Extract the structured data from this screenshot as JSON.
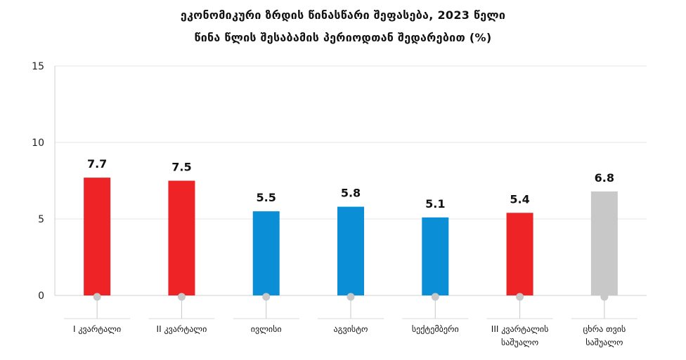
{
  "chart_data": {
    "type": "bar",
    "title": "ეკონომიკური ზრდის წინასწარი შეფასება, 2023 წელი",
    "subtitle": "წინა წლის შესაბამის პერიოდთან შედარებით (%)",
    "xlabel": "",
    "ylabel": "",
    "ylim": [
      0,
      15
    ],
    "yticks": [
      0,
      5,
      10,
      15
    ],
    "grid": true,
    "categories": [
      [
        "I კვარტალი"
      ],
      [
        "II კვარტალი"
      ],
      [
        "ივლისი"
      ],
      [
        "აგვისტო"
      ],
      [
        "სექტემბერი"
      ],
      [
        "III კვარტალის",
        "საშუალო"
      ],
      [
        "ცხრა თვის",
        "საშუალო"
      ]
    ],
    "values": [
      7.7,
      7.5,
      5.5,
      5.8,
      5.1,
      5.4,
      6.8
    ],
    "value_labels": [
      "7.7",
      "7.5",
      "5.5",
      "5.8",
      "5.1",
      "5.4",
      "6.8"
    ],
    "bar_colors": [
      "#ee2326",
      "#ee2326",
      "#0a8fd6",
      "#0a8fd6",
      "#0a8fd6",
      "#ee2326",
      "#c8c8c8"
    ]
  }
}
